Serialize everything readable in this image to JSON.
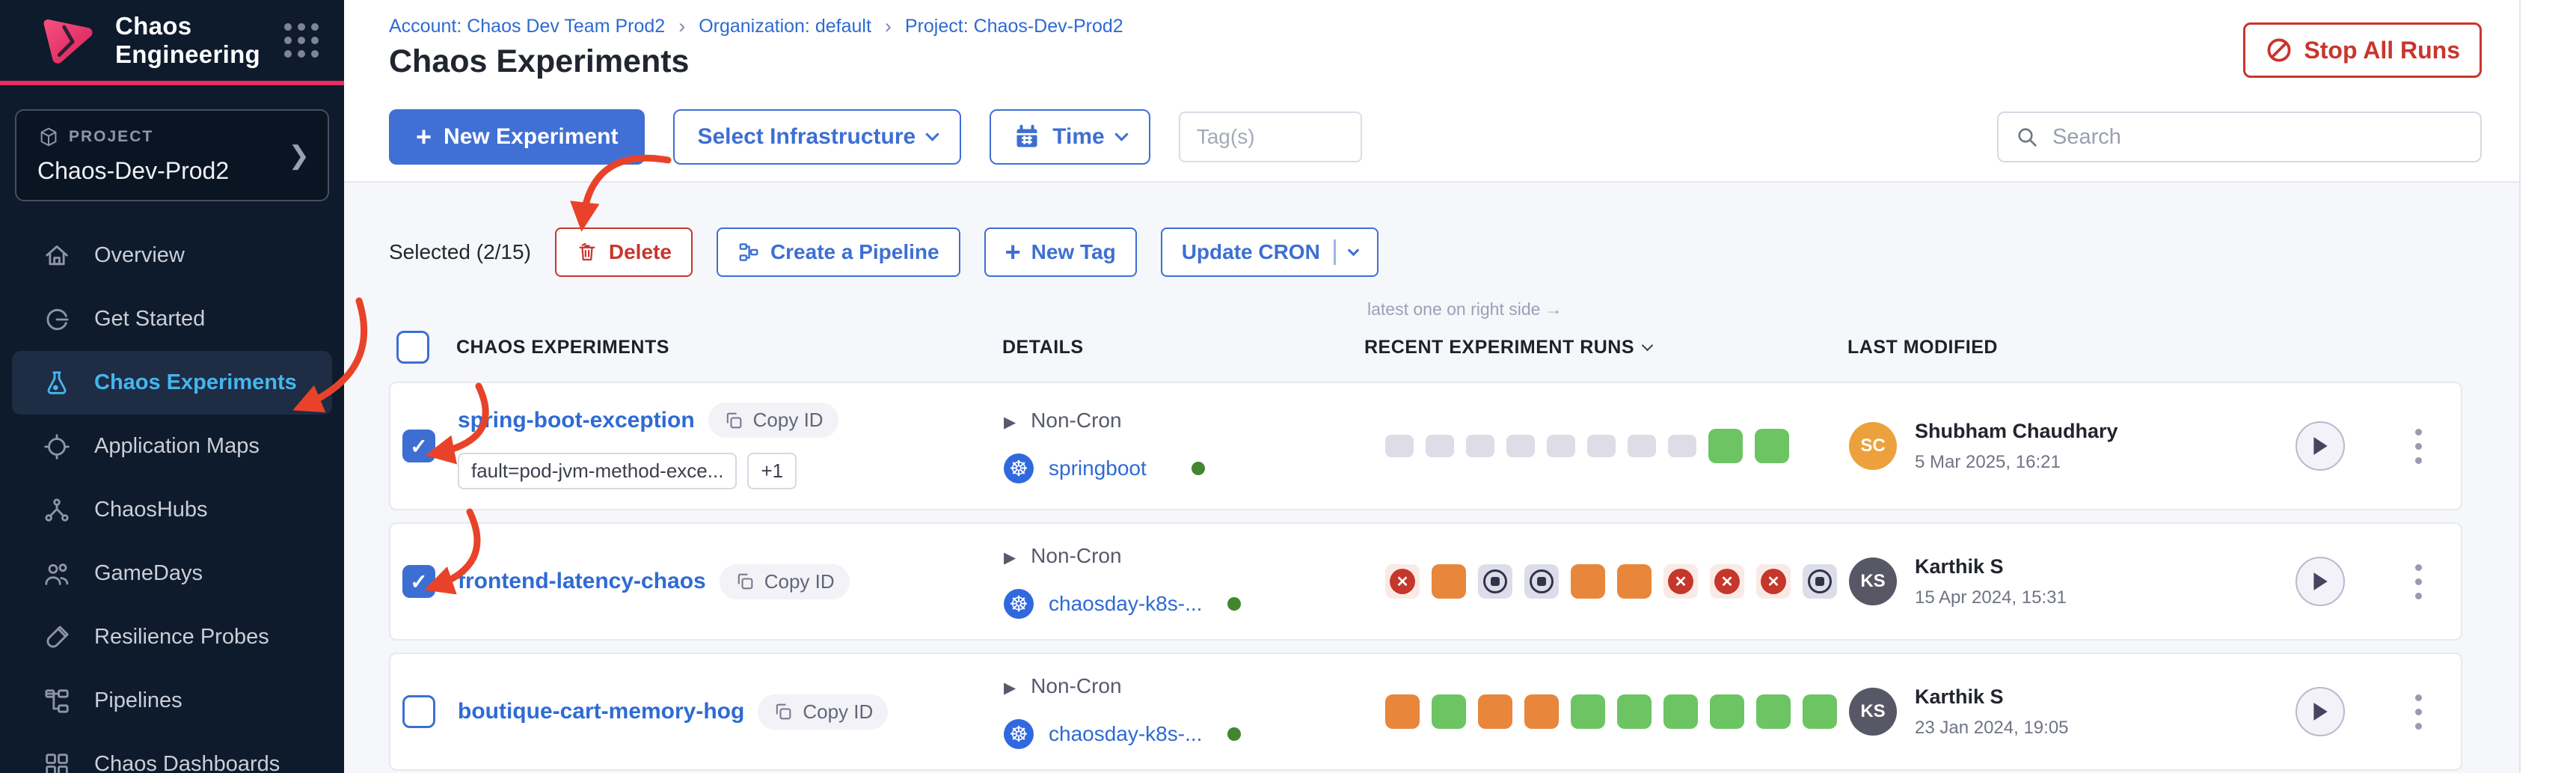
{
  "app": {
    "title": "Chaos Engineering"
  },
  "sidebar": {
    "project_label": "PROJECT",
    "project_name": "Chaos-Dev-Prod2",
    "items": [
      {
        "label": "Overview",
        "icon": "home-icon"
      },
      {
        "label": "Get Started",
        "icon": "get-started-icon"
      },
      {
        "label": "Chaos Experiments",
        "icon": "flask-icon",
        "active": true
      },
      {
        "label": "Application Maps",
        "icon": "target-icon"
      },
      {
        "label": "ChaosHubs",
        "icon": "hub-icon"
      },
      {
        "label": "GameDays",
        "icon": "people-icon"
      },
      {
        "label": "Resilience Probes",
        "icon": "probe-icon"
      },
      {
        "label": "Pipelines",
        "icon": "pipeline-icon"
      },
      {
        "label": "Chaos Dashboards",
        "icon": "dashboard-icon"
      }
    ]
  },
  "breadcrumb": {
    "items": [
      "Account: Chaos Dev Team Prod2",
      "Organization: default",
      "Project: Chaos-Dev-Prod2"
    ]
  },
  "page": {
    "title": "Chaos Experiments",
    "stop_all_runs_label": "Stop All Runs"
  },
  "toolbar": {
    "new_experiment_label": "New Experiment",
    "select_infrastructure_label": "Select Infrastructure",
    "time_label": "Time",
    "tags_placeholder": "Tag(s)",
    "search_placeholder": "Search"
  },
  "actions": {
    "selected_label": "Selected (2/15)",
    "delete_label": "Delete",
    "create_pipeline_label": "Create a Pipeline",
    "new_tag_label": "New Tag",
    "update_cron_label": "Update CRON"
  },
  "table": {
    "runs_hint": "latest one on right side →",
    "headers": {
      "experiments": "CHAOS EXPERIMENTS",
      "details": "DETAILS",
      "runs": "RECENT EXPERIMENT RUNS",
      "modified": "LAST MODIFIED"
    },
    "rows": [
      {
        "name": "spring-boot-exception",
        "copy_label": "Copy ID",
        "selected": true,
        "tags": [
          "fault=pod-jvm-method-exce...",
          "+1"
        ],
        "schedule": "Non-Cron",
        "infrastructure": "springboot",
        "infra_status": "active",
        "runs": [
          "empty",
          "empty",
          "empty",
          "empty",
          "empty",
          "empty",
          "empty",
          "empty",
          "completed",
          "completed"
        ],
        "modified": {
          "initials": "SC",
          "name": "Shubham Chaudhary",
          "date": "5 Mar 2025, 16:21",
          "avatar_color": "#eda13c"
        }
      },
      {
        "name": "frontend-latency-chaos",
        "copy_label": "Copy ID",
        "selected": true,
        "tags": [],
        "schedule": "Non-Cron",
        "infrastructure": "chaosday-k8s-...",
        "infra_status": "active",
        "runs": [
          "failed",
          "running",
          "stopped",
          "stopped",
          "running",
          "running",
          "failed",
          "failed",
          "failed",
          "stopped"
        ],
        "modified": {
          "initials": "KS",
          "name": "Karthik S",
          "date": "15 Apr 2024, 15:31",
          "avatar_color": "#575766"
        }
      },
      {
        "name": "boutique-cart-memory-hog",
        "copy_label": "Copy ID",
        "selected": false,
        "tags": [],
        "schedule": "Non-Cron",
        "infrastructure": "chaosday-k8s-...",
        "infra_status": "active",
        "runs": [
          "running",
          "completed",
          "running",
          "running",
          "completed",
          "completed",
          "completed",
          "completed",
          "completed",
          "completed"
        ],
        "modified": {
          "initials": "KS",
          "name": "Karthik S",
          "date": "23 Jan 2024, 19:05",
          "avatar_color": "#575766"
        }
      }
    ]
  },
  "colors": {
    "sidebar_bg": "#0e1b2c",
    "brand_pink": "#ee2a5e",
    "accent_blue": "#3d6fd3",
    "sidebar_active_blue": "#45b6ee",
    "danger_red": "#c9362c",
    "annotation_red": "#e8432a",
    "run_green": "#6cc562",
    "run_orange": "#e8863c",
    "run_failed_red": "#c4372a",
    "run_stopped_gray": "#dcdde8",
    "run_empty_gray": "#dcdde6",
    "status_dot_green": "#42862e",
    "content_bg": "#f6f7fa"
  }
}
